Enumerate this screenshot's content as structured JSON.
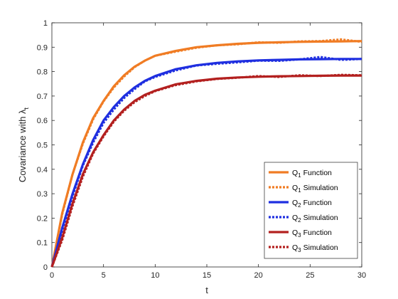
{
  "chart_data": {
    "type": "line",
    "title": "",
    "xlabel": "t",
    "ylabel": {
      "main": "Covariance with λ",
      "subscript": "t"
    },
    "xlim": [
      0,
      30
    ],
    "ylim": [
      0,
      1
    ],
    "x_ticks": [
      0,
      5,
      10,
      15,
      20,
      25,
      30
    ],
    "x_tick_labels": [
      "0",
      "5",
      "10",
      "15",
      "20",
      "25",
      "30"
    ],
    "y_ticks": [
      0,
      0.1,
      0.2,
      0.3,
      0.4,
      0.5,
      0.6,
      0.7,
      0.8,
      0.9,
      1
    ],
    "y_tick_labels": [
      "0",
      "0.1",
      "0.2",
      "0.3",
      "0.4",
      "0.5",
      "0.6",
      "0.7",
      "0.8",
      "0.9",
      "1"
    ],
    "grid": false,
    "legend_placement": "bottom-right",
    "x": [
      0,
      1,
      2,
      3,
      4,
      5,
      6,
      7,
      8,
      9,
      10,
      12,
      14,
      16,
      18,
      20,
      22,
      24,
      26,
      28,
      30
    ],
    "series": [
      {
        "name": "Q1 Function",
        "label_main": "Q",
        "label_sub": "1",
        "label_rest": "Function",
        "style": "solid",
        "color": "#F07C24",
        "values": [
          0.0,
          0.22,
          0.38,
          0.51,
          0.61,
          0.68,
          0.74,
          0.785,
          0.82,
          0.845,
          0.865,
          0.885,
          0.9,
          0.908,
          0.914,
          0.918,
          0.92,
          0.922,
          0.923,
          0.924,
          0.925
        ]
      },
      {
        "name": "Q1 Simulation",
        "label_main": "Q",
        "label_sub": "1",
        "label_rest": "Simulation",
        "style": "dotted",
        "color": "#F07C24",
        "values": [
          0.0,
          0.215,
          0.38,
          0.505,
          0.605,
          0.678,
          0.735,
          0.78,
          0.818,
          0.845,
          0.865,
          0.882,
          0.898,
          0.908,
          0.912,
          0.92,
          0.918,
          0.924,
          0.925,
          0.932,
          0.922
        ]
      },
      {
        "name": "Q2 Function",
        "label_main": "Q",
        "label_sub": "2",
        "label_rest": "Function",
        "style": "solid",
        "color": "#1F2FE0",
        "values": [
          0.0,
          0.16,
          0.3,
          0.42,
          0.52,
          0.6,
          0.655,
          0.7,
          0.735,
          0.762,
          0.782,
          0.81,
          0.826,
          0.836,
          0.842,
          0.846,
          0.848,
          0.85,
          0.851,
          0.852,
          0.852
        ]
      },
      {
        "name": "Q2 Simulation",
        "label_main": "Q",
        "label_sub": "2",
        "label_rest": "Simulation",
        "style": "dotted",
        "color": "#1F2FE0",
        "values": [
          0.0,
          0.15,
          0.29,
          0.415,
          0.51,
          0.59,
          0.645,
          0.692,
          0.728,
          0.76,
          0.778,
          0.805,
          0.825,
          0.832,
          0.838,
          0.845,
          0.844,
          0.85,
          0.86,
          0.848,
          0.852
        ]
      },
      {
        "name": "Q3 Function",
        "label_main": "Q",
        "label_sub": "3",
        "label_rest": "Function",
        "style": "solid",
        "color": "#B3201F",
        "values": [
          0.0,
          0.12,
          0.26,
          0.38,
          0.47,
          0.54,
          0.6,
          0.645,
          0.68,
          0.705,
          0.722,
          0.748,
          0.762,
          0.771,
          0.776,
          0.779,
          0.781,
          0.782,
          0.783,
          0.784,
          0.784
        ]
      },
      {
        "name": "Q3 Simulation",
        "label_main": "Q",
        "label_sub": "3",
        "label_rest": "Simulation",
        "style": "dotted",
        "color": "#B3201F",
        "values": [
          0.0,
          0.11,
          0.25,
          0.37,
          0.465,
          0.535,
          0.595,
          0.64,
          0.675,
          0.7,
          0.72,
          0.745,
          0.76,
          0.77,
          0.775,
          0.782,
          0.778,
          0.785,
          0.782,
          0.787,
          0.785
        ]
      }
    ]
  }
}
